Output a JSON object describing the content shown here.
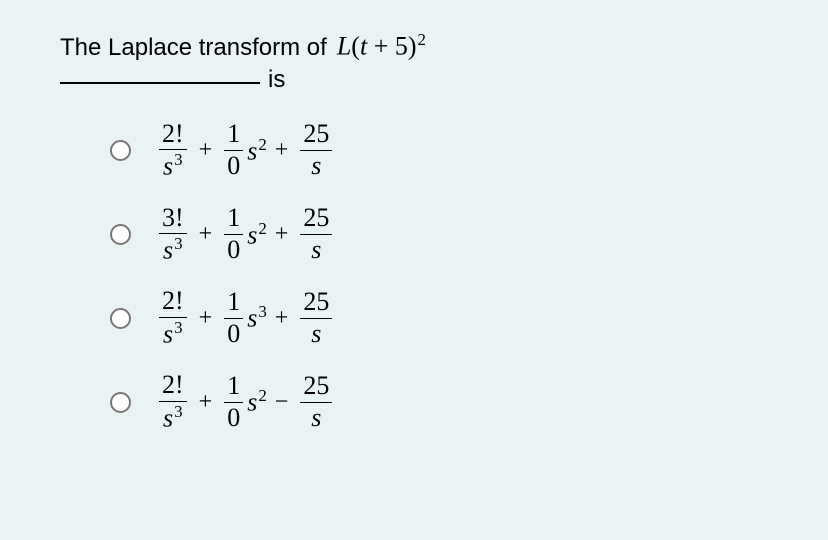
{
  "question": {
    "prefix": "The  Laplace transform of ",
    "func_letter": "L",
    "func_arg_open": "(",
    "func_t": "t",
    "func_plus": " + ",
    "func_five": "5",
    "func_arg_close": ")",
    "func_exp": "2",
    "is_word": "is"
  },
  "options": [
    {
      "t1_num": "2!",
      "t1_den_base": "s",
      "t1_den_exp": "3",
      "op1": "+",
      "t2_num": "1",
      "t2_den": "0",
      "t2_s_base": "s",
      "t2_s_exp": "2",
      "op2": "+",
      "t3_num": "25",
      "t3_den": "s"
    },
    {
      "t1_num": "3!",
      "t1_den_base": "s",
      "t1_den_exp": "3",
      "op1": "+",
      "t2_num": "1",
      "t2_den": "0",
      "t2_s_base": "s",
      "t2_s_exp": "2",
      "op2": "+",
      "t3_num": "25",
      "t3_den": "s"
    },
    {
      "t1_num": "2!",
      "t1_den_base": "s",
      "t1_den_exp": "3",
      "op1": "+",
      "t2_num": "1",
      "t2_den": "0",
      "t2_s_base": "s",
      "t2_s_exp": "3",
      "op2": "+",
      "t3_num": "25",
      "t3_den": "s"
    },
    {
      "t1_num": "2!",
      "t1_den_base": "s",
      "t1_den_exp": "3",
      "op1": "+",
      "t2_num": "1",
      "t2_den": "0",
      "t2_s_base": "s",
      "t2_s_exp": "2",
      "op2": "−",
      "t3_num": "25",
      "t3_den": "s"
    }
  ],
  "style": {
    "background": "#eaf3f3",
    "text_color": "#000000",
    "radio_border": "#777777",
    "font_math": "Times New Roman",
    "font_question": "Arial",
    "base_fontsize_pt": 18
  }
}
